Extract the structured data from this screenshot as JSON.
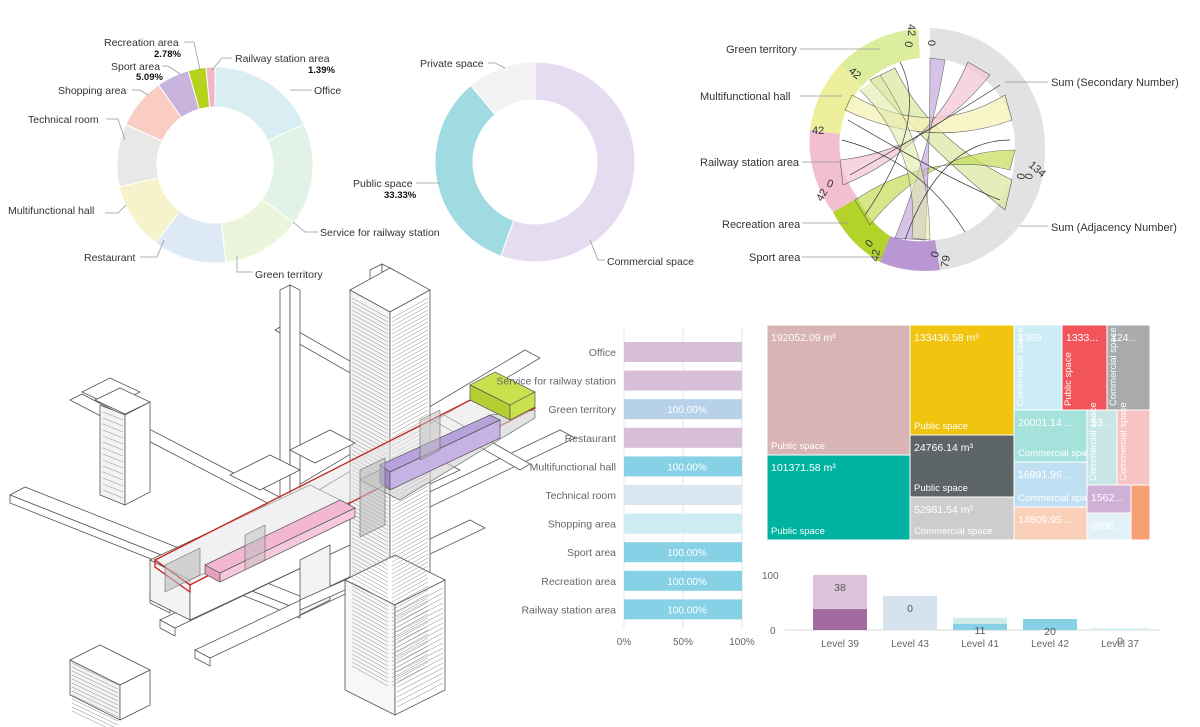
{
  "chart_data": [
    {
      "type": "pie",
      "name": "function-area-donut",
      "labels": [
        "Office",
        "Service for railway station",
        "Green territory",
        "Restaurant",
        "Multifunctional hall",
        "Technical room",
        "Shopping area",
        "Sport area",
        "Recreation area",
        "Railway station area"
      ],
      "values": [
        17.2,
        16.0,
        12.5,
        11.5,
        10.5,
        9.8,
        8.0,
        5.09,
        2.78,
        1.39
      ],
      "value_labels": {
        "Sport area": "5.09%",
        "Recreation area": "2.78%",
        "Railway station area": "1.39%"
      },
      "colors": [
        "#d8eef2",
        "#e2f2e6",
        "#ebf5dc",
        "#dde9f4",
        "#f6f2cc",
        "#e8e8e6",
        "#f9ccc4",
        "#c7b3dc",
        "#b5d31c",
        "#f4b6c6"
      ]
    },
    {
      "type": "pie",
      "name": "space-type-donut",
      "labels": [
        "Commercial space",
        "Public space",
        "Private space"
      ],
      "values": [
        55.56,
        33.33,
        11.11
      ],
      "value_labels": {
        "Public space": "33.33%"
      },
      "colors": [
        "#e6dcf2",
        "#9fdbe0",
        "#f2f2f2"
      ]
    },
    {
      "type": "chord",
      "name": "adjacency-chord",
      "nodes": [
        "Green territory",
        "Multifunctional hall",
        "Railway station area",
        "Recreation area",
        "Sport area",
        "Sum (Adjacency Number)",
        "Sum (Secondary Number)"
      ],
      "tick_labels": [
        "0",
        "42",
        "0",
        "42",
        "42",
        "0",
        "42",
        "0",
        "42",
        "0",
        "79",
        "0",
        "134",
        "0"
      ]
    },
    {
      "type": "bar",
      "name": "stacked-percent-bars",
      "categories": [
        "Office",
        "Service for railway station",
        "Green territory",
        "Restaurant",
        "Multifunctional hall",
        "Technical room",
        "Shopping area",
        "Sport area",
        "Recreation area",
        "Railway station area"
      ],
      "values": [
        100,
        100,
        100,
        100,
        100,
        100,
        100,
        100,
        100,
        100
      ],
      "value_labels": [
        "",
        "",
        "100.00%",
        "",
        "100.00%",
        "",
        "",
        "100.00%",
        "100.00%",
        "100.00%"
      ],
      "colors": [
        "#d7bfd8",
        "#d7bfd8",
        "#b6d1e8",
        "#d7bfd8",
        "#86d1e6",
        "#dae7f3",
        "#cdebf3",
        "#86d1e6",
        "#86d1e6",
        "#86d1e6"
      ],
      "xticks": [
        "0%",
        "50%",
        "100%"
      ],
      "xlim": [
        0,
        100
      ]
    },
    {
      "type": "treemap",
      "name": "volume-treemap",
      "cells": [
        {
          "value": "192052.09 m³",
          "label": "Public space",
          "color": "#d8b4b4"
        },
        {
          "value": "101371.58 m³",
          "label": "Public space",
          "color": "#00b3a0"
        },
        {
          "value": "133436.58 m³",
          "label": "Public space",
          "color": "#f0c40f"
        },
        {
          "value": "24766.14 m³",
          "label": "Public space",
          "color": "#5d6566"
        },
        {
          "value": "52981.54 m³",
          "label": "Commercial space",
          "color": "#cdcdcd"
        },
        {
          "value": "1369...",
          "label": "Commercial space",
          "color": "#ccecf6"
        },
        {
          "value": "1333...",
          "label": "Public space",
          "color": "#f2545b"
        },
        {
          "value": "124...",
          "label": "Commercial space",
          "color": "#a8aaab"
        },
        {
          "value": "20001.14 ...",
          "label": "Commercial space",
          "color": "#a5e2dc"
        },
        {
          "value": "13...",
          "label": "Commercial space",
          "color": "#c9e6e6"
        },
        {
          "value": "",
          "label": "Commercial space",
          "color": "#f8c3c3"
        },
        {
          "value": "16991.96 ...",
          "label": "Commercial space",
          "color": "#bfe0f2"
        },
        {
          "value": "1562...",
          "label": "",
          "color": "#cfb0d6"
        },
        {
          "value": "",
          "label": "",
          "color": "#f6a074"
        },
        {
          "value": "14809.95 ...",
          "label": "",
          "color": "#fbd0b8"
        },
        {
          "value": "6890...",
          "label": "",
          "color": "#e2f1f8"
        }
      ]
    },
    {
      "type": "bar",
      "name": "level-bars",
      "categories": [
        "Level 39",
        "Level 43",
        "Level 41",
        "Level 42",
        "Level 37"
      ],
      "values": [
        100,
        62,
        22,
        20,
        3
      ],
      "inner_values": [
        38,
        0,
        11,
        20,
        0
      ],
      "value_labels": [
        "38",
        "0",
        "11",
        "20",
        "0"
      ],
      "colors": [
        "#ddc4dc",
        "#d6e2ee",
        "#cfeae9",
        "#86d1e6",
        "#cfeef4"
      ],
      "inner_colors": [
        "#a16aa0",
        "",
        "#86d1e6",
        "#86d1e6",
        ""
      ],
      "yticks": [
        "100",
        "0"
      ],
      "ylim": [
        0,
        100
      ]
    }
  ],
  "illustration": {
    "accent_green": "#c8e14d",
    "accent_purple": "#b8a2dc",
    "accent_pink": "#f2b8d2",
    "outline_red": "#cc2020"
  }
}
